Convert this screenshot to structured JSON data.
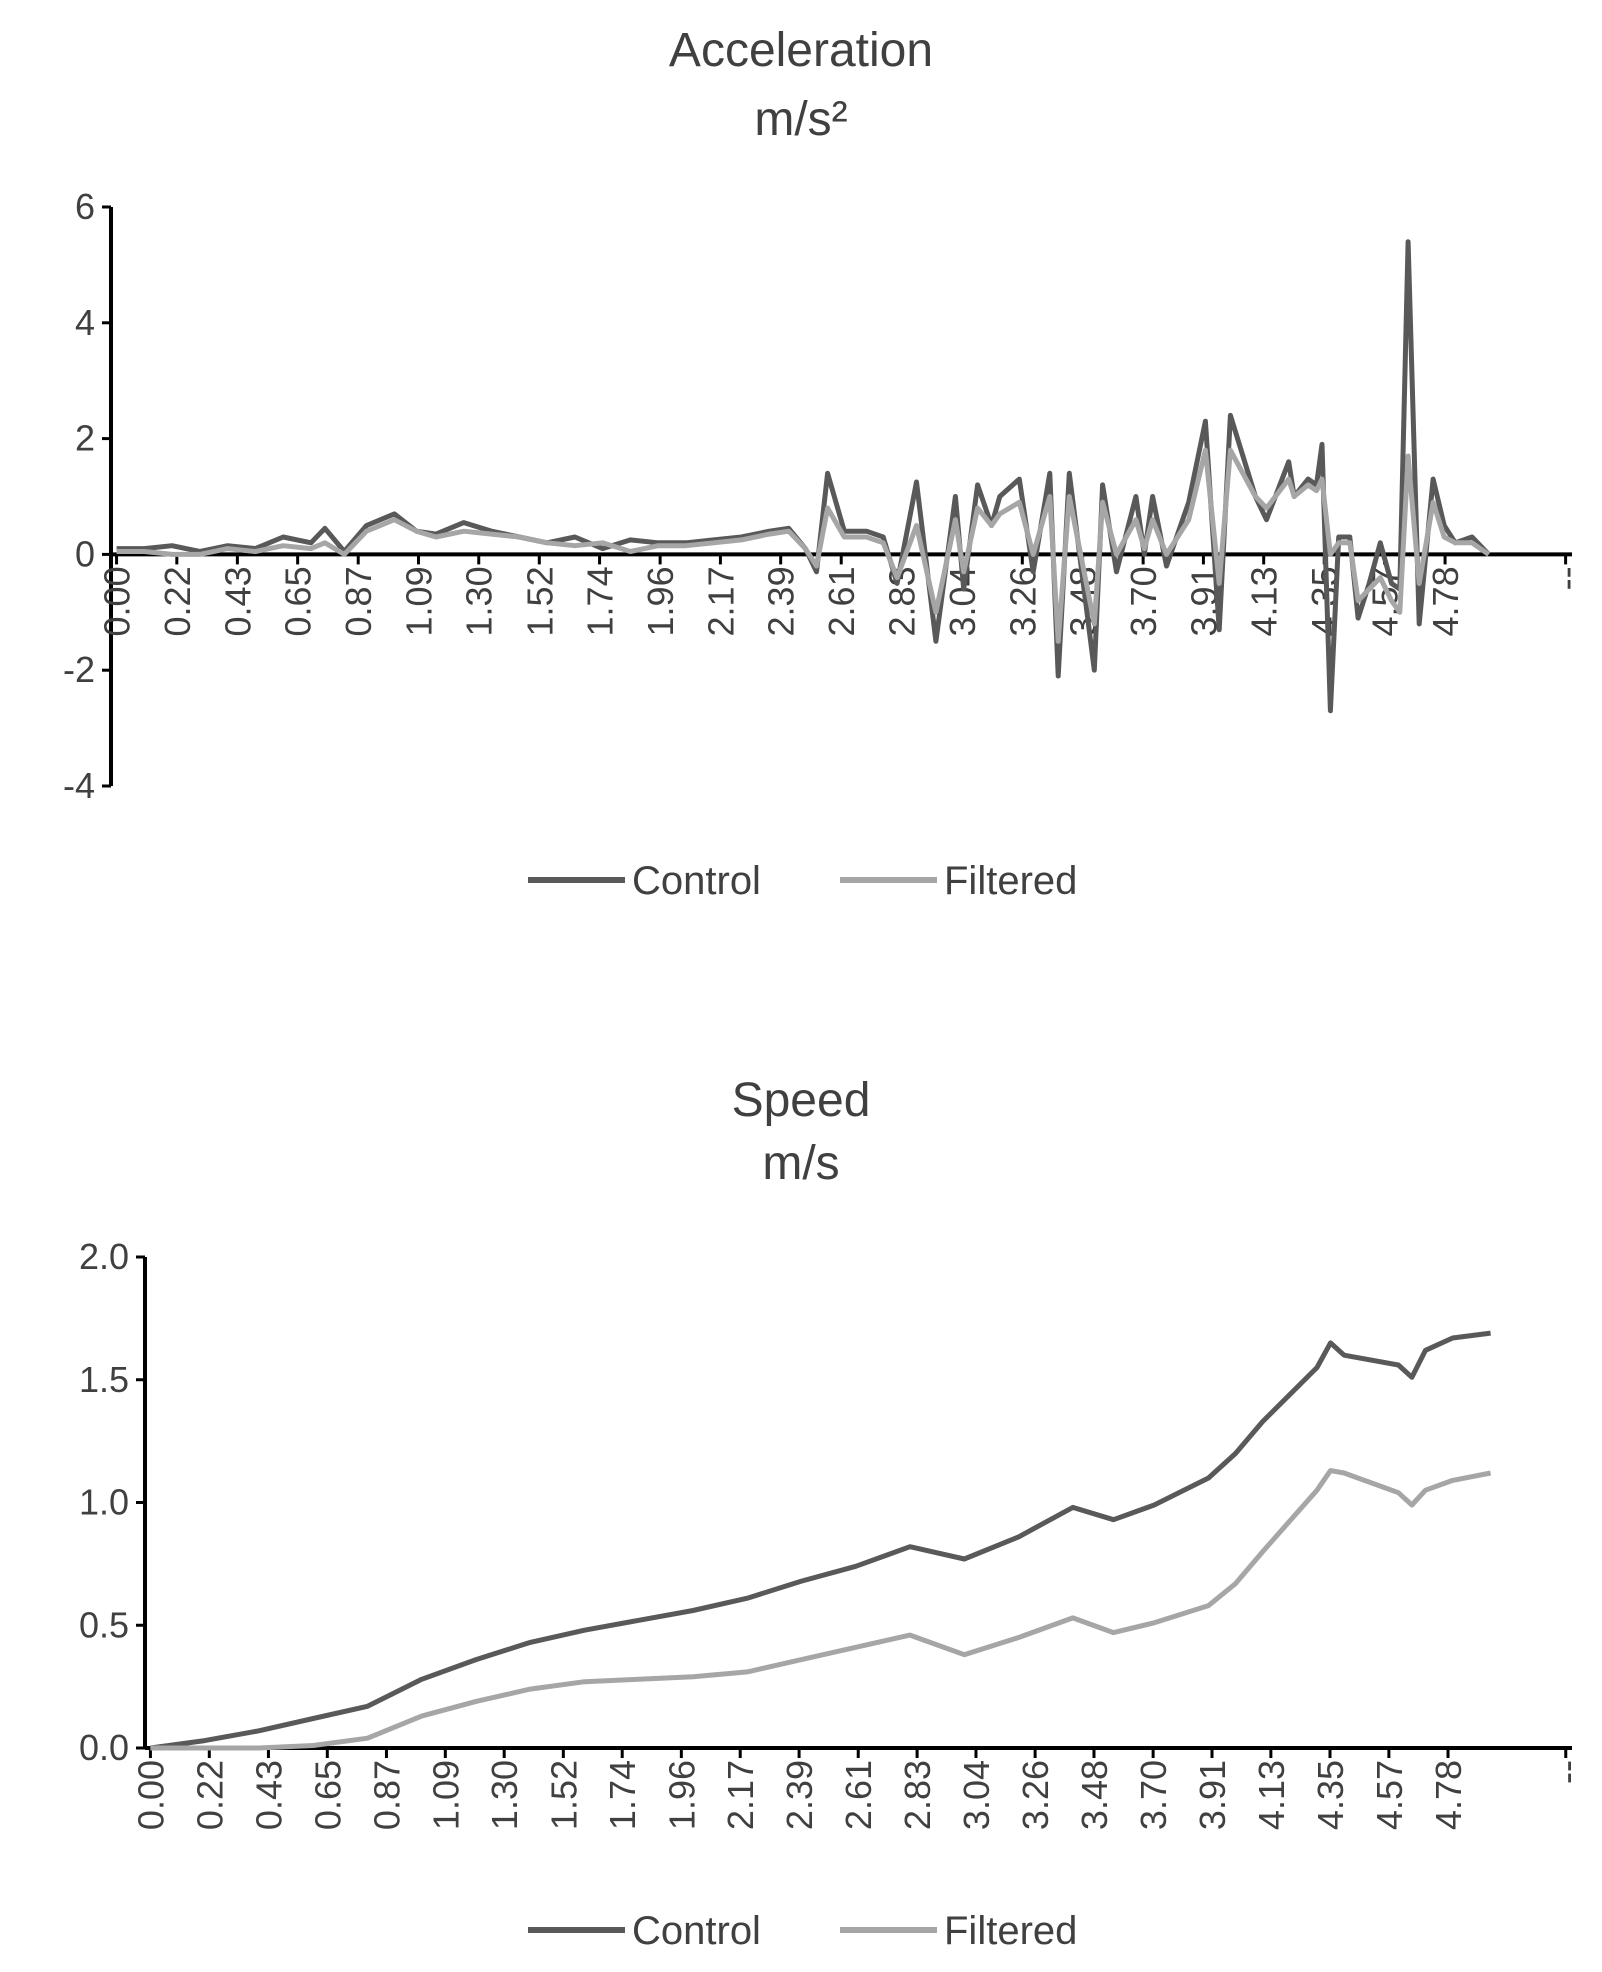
{
  "chart_data": [
    {
      "type": "line",
      "title": "Acceleration",
      "subtitle": "m/s²",
      "x": [
        0,
        0.1,
        0.2,
        0.3,
        0.4,
        0.5,
        0.6,
        0.7,
        0.75,
        0.82,
        0.9,
        1.0,
        1.08,
        1.15,
        1.25,
        1.35,
        1.45,
        1.55,
        1.65,
        1.75,
        1.85,
        1.95,
        2.05,
        2.15,
        2.25,
        2.35,
        2.42,
        2.48,
        2.52,
        2.56,
        2.62,
        2.7,
        2.76,
        2.81,
        2.88,
        2.95,
        3.02,
        3.05,
        3.1,
        3.15,
        3.18,
        3.25,
        3.3,
        3.36,
        3.39,
        3.43,
        3.52,
        3.55,
        3.6,
        3.67,
        3.7,
        3.73,
        3.78,
        3.86,
        3.92,
        3.97,
        4.01,
        4.1,
        4.14,
        4.22,
        4.24,
        4.29,
        4.32,
        4.34,
        4.37,
        4.4,
        4.44,
        4.47,
        4.51,
        4.55,
        4.59,
        4.62,
        4.65,
        4.69,
        4.74,
        4.78,
        4.82,
        4.88,
        4.94
      ],
      "series": [
        {
          "name": "Control",
          "color": "#595959",
          "values": [
            0.1,
            0.1,
            0.15,
            0.05,
            0.15,
            0.1,
            0.3,
            0.2,
            0.45,
            0.05,
            0.5,
            0.7,
            0.4,
            0.35,
            0.55,
            0.4,
            0.3,
            0.2,
            0.3,
            0.1,
            0.25,
            0.2,
            0.2,
            0.25,
            0.3,
            0.4,
            0.45,
            0.1,
            -0.3,
            1.4,
            0.4,
            0.4,
            0.3,
            -0.5,
            1.25,
            -1.5,
            1.0,
            -0.6,
            1.2,
            0.5,
            1.0,
            1.3,
            -0.3,
            1.4,
            -2.1,
            1.4,
            -2.0,
            1.2,
            -0.3,
            1.0,
            0,
            1.0,
            -0.2,
            0.9,
            2.3,
            -1.3,
            2.4,
            1.0,
            0.6,
            1.6,
            1.0,
            1.3,
            1.2,
            1.9,
            -2.7,
            0.3,
            0.3,
            -1.1,
            -0.5,
            0.2,
            -0.5,
            -0.6,
            5.4,
            -1.2,
            1.3,
            0.5,
            0.2,
            0.3,
            0
          ]
        },
        {
          "name": "Filtered",
          "color": "#a6a6a6",
          "values": [
            0.05,
            0.05,
            0.0,
            0.0,
            0.1,
            0.05,
            0.15,
            0.1,
            0.2,
            0,
            0.4,
            0.6,
            0.4,
            0.3,
            0.4,
            0.35,
            0.3,
            0.2,
            0.15,
            0.2,
            0.05,
            0.15,
            0.15,
            0.2,
            0.25,
            0.35,
            0.4,
            0.1,
            -0.2,
            0.8,
            0.3,
            0.3,
            0.2,
            -0.4,
            0.5,
            -1.0,
            0.6,
            -0.3,
            0.8,
            0.5,
            0.7,
            0.9,
            0,
            1.0,
            -1.5,
            1.0,
            -1.2,
            0.9,
            0,
            0.6,
            0.1,
            0.6,
            0,
            0.6,
            1.8,
            -0.5,
            1.8,
            1.0,
            0.8,
            1.3,
            1.0,
            1.2,
            1.1,
            1.3,
            0,
            0.2,
            0.2,
            -0.8,
            -0.6,
            -0.4,
            -0.8,
            -1.0,
            1.7,
            -0.5,
            0.9,
            0.3,
            0.2,
            0.2,
            0
          ]
        }
      ],
      "xlim": [
        -0.02,
        5.24
      ],
      "xticks": [
        {
          "value": 0,
          "label": "0.00"
        },
        {
          "value": 0.217,
          "label": "0.22"
        },
        {
          "value": 0.435,
          "label": "0.43"
        },
        {
          "value": 0.652,
          "label": "0.65"
        },
        {
          "value": 0.87,
          "label": "0.87"
        },
        {
          "value": 1.087,
          "label": "1.09"
        },
        {
          "value": 1.304,
          "label": "1.30"
        },
        {
          "value": 1.522,
          "label": "1.52"
        },
        {
          "value": 1.739,
          "label": "1.74"
        },
        {
          "value": 1.957,
          "label": "1.96"
        },
        {
          "value": 2.174,
          "label": "2.17"
        },
        {
          "value": 2.391,
          "label": "2.39"
        },
        {
          "value": 2.609,
          "label": "2.61"
        },
        {
          "value": 2.826,
          "label": "2.83"
        },
        {
          "value": 3.043,
          "label": "3.04"
        },
        {
          "value": 3.261,
          "label": "3.26"
        },
        {
          "value": 3.478,
          "label": "3.48"
        },
        {
          "value": 3.696,
          "label": "3.70"
        },
        {
          "value": 3.913,
          "label": "3.91"
        },
        {
          "value": 4.13,
          "label": "4.13"
        },
        {
          "value": 4.348,
          "label": "4.35"
        },
        {
          "value": 4.565,
          "label": "4.57"
        },
        {
          "value": 4.783,
          "label": "4.78"
        },
        {
          "value": 5.217,
          "label": "--"
        }
      ],
      "ylim": [
        -4,
        6
      ],
      "yticks": [
        -4,
        -2,
        0,
        2,
        4,
        6
      ],
      "grid": false,
      "legend": "bottom"
    },
    {
      "type": "line",
      "title": "Speed",
      "subtitle": "m/s",
      "x": [
        0,
        0.2,
        0.4,
        0.6,
        0.8,
        1.0,
        1.2,
        1.4,
        1.6,
        1.8,
        2.0,
        2.2,
        2.4,
        2.6,
        2.8,
        3.0,
        3.2,
        3.4,
        3.55,
        3.7,
        3.9,
        4.0,
        4.1,
        4.3,
        4.35,
        4.4,
        4.6,
        4.65,
        4.7,
        4.8,
        4.94
      ],
      "series": [
        {
          "name": "Control",
          "color": "#595959",
          "values": [
            0,
            0.03,
            0.07,
            0.12,
            0.17,
            0.28,
            0.36,
            0.43,
            0.48,
            0.52,
            0.56,
            0.61,
            0.68,
            0.74,
            0.82,
            0.77,
            0.86,
            0.98,
            0.93,
            0.99,
            1.1,
            1.2,
            1.33,
            1.55,
            1.65,
            1.6,
            1.56,
            1.51,
            1.62,
            1.67,
            1.69
          ]
        },
        {
          "name": "Filtered",
          "color": "#a6a6a6",
          "values": [
            0,
            0,
            0,
            0.01,
            0.04,
            0.13,
            0.19,
            0.24,
            0.27,
            0.28,
            0.29,
            0.31,
            0.36,
            0.41,
            0.46,
            0.38,
            0.45,
            0.53,
            0.47,
            0.51,
            0.58,
            0.67,
            0.8,
            1.05,
            1.13,
            1.12,
            1.04,
            0.99,
            1.05,
            1.09,
            1.12
          ]
        }
      ],
      "xlim": [
        -0.02,
        5.24
      ],
      "xticks": [
        {
          "value": 0,
          "label": "0.00"
        },
        {
          "value": 0.217,
          "label": "0.22"
        },
        {
          "value": 0.435,
          "label": "0.43"
        },
        {
          "value": 0.652,
          "label": "0.65"
        },
        {
          "value": 0.87,
          "label": "0.87"
        },
        {
          "value": 1.087,
          "label": "1.09"
        },
        {
          "value": 1.304,
          "label": "1.30"
        },
        {
          "value": 1.522,
          "label": "1.52"
        },
        {
          "value": 1.739,
          "label": "1.74"
        },
        {
          "value": 1.957,
          "label": "1.96"
        },
        {
          "value": 2.174,
          "label": "2.17"
        },
        {
          "value": 2.391,
          "label": "2.39"
        },
        {
          "value": 2.609,
          "label": "2.61"
        },
        {
          "value": 2.826,
          "label": "2.83"
        },
        {
          "value": 3.043,
          "label": "3.04"
        },
        {
          "value": 3.261,
          "label": "3.26"
        },
        {
          "value": 3.478,
          "label": "3.48"
        },
        {
          "value": 3.696,
          "label": "3.70"
        },
        {
          "value": 3.913,
          "label": "3.91"
        },
        {
          "value": 4.13,
          "label": "4.13"
        },
        {
          "value": 4.348,
          "label": "4.35"
        },
        {
          "value": 4.565,
          "label": "4.57"
        },
        {
          "value": 4.783,
          "label": "4.78"
        },
        {
          "value": 5.217,
          "label": "--"
        }
      ],
      "ylim": [
        0,
        2
      ],
      "yticks": [
        {
          "value": 0,
          "label": "0.0"
        },
        {
          "value": 0.5,
          "label": "0.5"
        },
        {
          "value": 1,
          "label": "1.0"
        },
        {
          "value": 1.5,
          "label": "1.5"
        },
        {
          "value": 2,
          "label": "2.0"
        }
      ],
      "grid": false,
      "legend": "bottom"
    }
  ]
}
